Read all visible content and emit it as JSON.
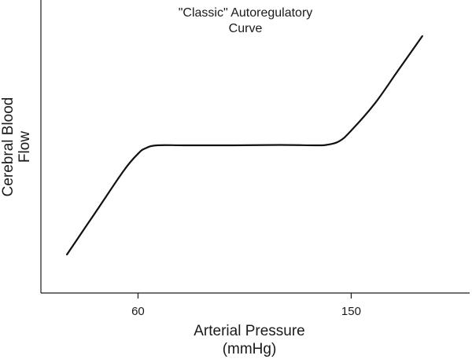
{
  "chart_data": {
    "type": "line",
    "title": [
      "\"Classic\" Autoregulatory",
      "Curve"
    ],
    "xlabel": [
      "Arterial Pressure",
      "(mmHg)"
    ],
    "ylabel": [
      "Cerebral Blood",
      "Flow"
    ],
    "xticks": [
      60,
      150
    ],
    "xlim": [
      19,
      200
    ],
    "ylim": [
      0,
      1
    ],
    "y_ticks_shown": false,
    "grid": false,
    "legend": "none",
    "series": [
      {
        "x": [
          30,
          42,
          54,
          60,
          63,
          68,
          80,
          100,
          120,
          135,
          140,
          145,
          150,
          160,
          170,
          180
        ],
        "y": [
          0.09,
          0.29,
          0.49,
          0.57,
          0.595,
          0.61,
          0.61,
          0.61,
          0.612,
          0.61,
          0.613,
          0.63,
          0.68,
          0.81,
          0.97,
          1.13
        ]
      }
    ]
  }
}
